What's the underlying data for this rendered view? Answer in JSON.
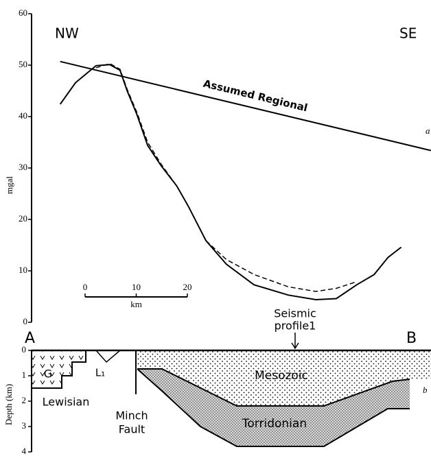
{
  "chart_data": [
    {
      "type": "line",
      "ylabel": "mgal",
      "ylim": [
        0,
        60
      ],
      "yticks": [
        0,
        10,
        20,
        30,
        40,
        50,
        60
      ],
      "xlim": [
        0,
        78
      ],
      "left_label": "NW",
      "right_label": "SE",
      "panel_label": "a",
      "scale_bar": {
        "ticks": [
          0,
          10,
          20
        ],
        "label": "km"
      },
      "series": [
        {
          "name": "Assumed Regional",
          "color": "#000000",
          "dashed": false,
          "x": [
            5.6,
            78.1
          ],
          "values": [
            50.7,
            33.4
          ]
        },
        {
          "color": "#000000",
          "dashed": false,
          "x": [
            5.6,
            8.6,
            12.6,
            15.3,
            17.3,
            18.7,
            20.6,
            22.7,
            25.3,
            28.4,
            30.7,
            34.1,
            38.1,
            43.5,
            50.2,
            55.6,
            59.6,
            63.6,
            67.0,
            69.7,
            72.3
          ],
          "values": [
            42.4,
            46.6,
            49.9,
            50.1,
            49.0,
            45.0,
            40.4,
            34.4,
            30.5,
            26.5,
            22.5,
            15.9,
            11.3,
            7.3,
            5.3,
            4.4,
            4.6,
            7.3,
            9.3,
            12.6,
            14.6
          ]
        },
        {
          "color": "#000000",
          "dashed": true,
          "x": [
            12.6,
            15.3,
            17.3,
            18.7,
            20.6,
            22.7,
            25.3,
            28.4,
            30.7,
            34.1,
            38.1,
            43.5,
            50.2,
            55.6,
            59.6,
            63.6
          ],
          "values": [
            49.5,
            50.3,
            49.2,
            45.3,
            40.8,
            35.0,
            30.8,
            26.5,
            22.5,
            15.9,
            12.2,
            9.3,
            6.9,
            6.0,
            6.6,
            7.9
          ]
        }
      ]
    },
    {
      "type": "cross-section",
      "ylabel": "Depth (km)",
      "ylim": [
        0,
        4
      ],
      "yticks": [
        0,
        1,
        2,
        3,
        4
      ],
      "panel_label": "b",
      "end_labels": [
        "A",
        "B"
      ],
      "seismic_label": [
        "Seismic",
        "profile1"
      ],
      "fault_label": [
        "Minch",
        "Fault"
      ],
      "units": [
        "G",
        "L₁",
        "Lewisian",
        "Mesozoic",
        "Torridonian"
      ]
    }
  ]
}
